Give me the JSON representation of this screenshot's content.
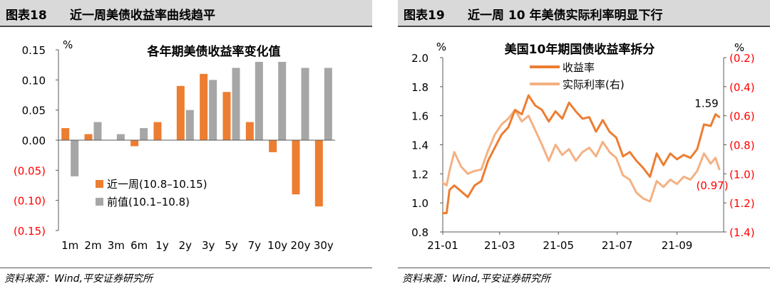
{
  "colors": {
    "orange": "#ed7d31",
    "gray": "#a6a6a6",
    "light_orange": "#f4b183",
    "red": "#ff0000",
    "axis": "#595959"
  },
  "panels": [
    {
      "figure_label": "图表18",
      "title": "近一周美债收益率曲线趋平",
      "source": "资料来源：Wind,平安证券研究所",
      "chart_data": {
        "type": "bar",
        "title": "各年期美债收益率变化值",
        "unit_label": "%",
        "categories": [
          "1m",
          "2m",
          "3m",
          "6m",
          "1y",
          "2y",
          "3y",
          "5y",
          "7y",
          "10y",
          "20y",
          "30y"
        ],
        "series": [
          {
            "name": "近一周(10.8–10.15)",
            "color": "#ed7d31",
            "values": [
              0.02,
              0.01,
              0.0,
              -0.01,
              0.03,
              0.09,
              0.11,
              0.08,
              0.03,
              -0.02,
              -0.09,
              -0.11
            ]
          },
          {
            "name": "前值(10.1–10.8)",
            "color": "#a6a6a6",
            "values": [
              -0.06,
              0.03,
              0.01,
              0.02,
              0.0,
              0.05,
              0.1,
              0.12,
              0.13,
              0.13,
              0.12,
              0.12
            ]
          }
        ],
        "ylim": [
          -0.15,
          0.15
        ],
        "yticks": [
          {
            "v": 0.15,
            "label": "0.15"
          },
          {
            "v": 0.1,
            "label": "0.10"
          },
          {
            "v": 0.05,
            "label": "0.05"
          },
          {
            "v": 0.0,
            "label": "0.00"
          },
          {
            "v": -0.05,
            "label": "(0.05)"
          },
          {
            "v": -0.1,
            "label": "(0.10)"
          },
          {
            "v": -0.15,
            "label": "(0.15)"
          }
        ],
        "legend_position": "bottom-left"
      }
    },
    {
      "figure_label": "图表19",
      "title": "近一周 10 年美债实际利率明显下行",
      "source": "资料来源：Wind,平安证券研究所",
      "chart_data": {
        "type": "line",
        "title": "美国10年期国债收益率拆分",
        "left_unit": "%",
        "right_unit": "%",
        "left_ylim": [
          0.8,
          2.0
        ],
        "right_ylim": [
          -1.4,
          -0.2
        ],
        "left_yticks": [
          "2.0",
          "1.8",
          "1.6",
          "1.4",
          "1.2",
          "1.0",
          "0.8"
        ],
        "right_yticks": [
          "(0.2)",
          "(0.4)",
          "(0.6)",
          "(0.8)",
          "(1.0)",
          "(1.2)",
          "(1.4)"
        ],
        "xticks": [
          "21-01",
          "21-03",
          "21-05",
          "21-07",
          "21-09"
        ],
        "series": [
          {
            "name": "收益率",
            "axis": "left",
            "color": "#ed7d31",
            "end_label": "1.59",
            "points": [
              [
                "2021-01-01",
                0.93
              ],
              [
                "2021-01-05",
                0.93
              ],
              [
                "2021-01-08",
                1.09
              ],
              [
                "2021-01-13",
                1.12
              ],
              [
                "2021-01-20",
                1.08
              ],
              [
                "2021-01-27",
                1.04
              ],
              [
                "2021-02-03",
                1.12
              ],
              [
                "2021-02-10",
                1.15
              ],
              [
                "2021-02-17",
                1.29
              ],
              [
                "2021-02-24",
                1.38
              ],
              [
                "2021-03-03",
                1.47
              ],
              [
                "2021-03-10",
                1.52
              ],
              [
                "2021-03-17",
                1.64
              ],
              [
                "2021-03-24",
                1.61
              ],
              [
                "2021-03-31",
                1.74
              ],
              [
                "2021-04-07",
                1.67
              ],
              [
                "2021-04-14",
                1.64
              ],
              [
                "2021-04-21",
                1.56
              ],
              [
                "2021-04-28",
                1.63
              ],
              [
                "2021-05-05",
                1.58
              ],
              [
                "2021-05-12",
                1.69
              ],
              [
                "2021-05-19",
                1.63
              ],
              [
                "2021-05-26",
                1.58
              ],
              [
                "2021-06-02",
                1.59
              ],
              [
                "2021-06-09",
                1.49
              ],
              [
                "2021-06-16",
                1.57
              ],
              [
                "2021-06-23",
                1.49
              ],
              [
                "2021-06-30",
                1.45
              ],
              [
                "2021-07-07",
                1.32
              ],
              [
                "2021-07-14",
                1.35
              ],
              [
                "2021-07-21",
                1.29
              ],
              [
                "2021-07-28",
                1.24
              ],
              [
                "2021-08-04",
                1.18
              ],
              [
                "2021-08-11",
                1.34
              ],
              [
                "2021-08-18",
                1.26
              ],
              [
                "2021-08-25",
                1.34
              ],
              [
                "2021-09-01",
                1.3
              ],
              [
                "2021-09-08",
                1.33
              ],
              [
                "2021-09-15",
                1.31
              ],
              [
                "2021-09-22",
                1.37
              ],
              [
                "2021-09-29",
                1.54
              ],
              [
                "2021-10-06",
                1.53
              ],
              [
                "2021-10-11",
                1.61
              ],
              [
                "2021-10-15",
                1.59
              ]
            ]
          },
          {
            "name": "实际利率(右)",
            "axis": "right",
            "color": "#f4b183",
            "end_label": "(0.97)",
            "points": [
              [
                "2021-01-01",
                -1.06
              ],
              [
                "2021-01-05",
                -1.08
              ],
              [
                "2021-01-08",
                -0.98
              ],
              [
                "2021-01-13",
                -0.85
              ],
              [
                "2021-01-20",
                -0.95
              ],
              [
                "2021-01-27",
                -1.0
              ],
              [
                "2021-02-03",
                -0.98
              ],
              [
                "2021-02-10",
                -0.97
              ],
              [
                "2021-02-17",
                -0.84
              ],
              [
                "2021-02-24",
                -0.73
              ],
              [
                "2021-03-03",
                -0.66
              ],
              [
                "2021-03-10",
                -0.62
              ],
              [
                "2021-03-17",
                -0.56
              ],
              [
                "2021-03-24",
                -0.64
              ],
              [
                "2021-03-31",
                -0.6
              ],
              [
                "2021-04-07",
                -0.7
              ],
              [
                "2021-04-14",
                -0.8
              ],
              [
                "2021-04-21",
                -0.91
              ],
              [
                "2021-04-28",
                -0.8
              ],
              [
                "2021-05-05",
                -0.87
              ],
              [
                "2021-05-12",
                -0.83
              ],
              [
                "2021-05-19",
                -0.91
              ],
              [
                "2021-05-26",
                -0.85
              ],
              [
                "2021-06-02",
                -0.82
              ],
              [
                "2021-06-09",
                -0.88
              ],
              [
                "2021-06-16",
                -0.78
              ],
              [
                "2021-06-23",
                -0.85
              ],
              [
                "2021-06-30",
                -0.89
              ],
              [
                "2021-07-07",
                -1.01
              ],
              [
                "2021-07-14",
                -1.04
              ],
              [
                "2021-07-21",
                -1.13
              ],
              [
                "2021-07-28",
                -1.17
              ],
              [
                "2021-08-04",
                -1.19
              ],
              [
                "2021-08-11",
                -1.05
              ],
              [
                "2021-08-18",
                -1.09
              ],
              [
                "2021-08-25",
                -1.04
              ],
              [
                "2021-09-01",
                -1.07
              ],
              [
                "2021-09-08",
                -1.02
              ],
              [
                "2021-09-15",
                -1.04
              ],
              [
                "2021-09-22",
                -0.98
              ],
              [
                "2021-09-29",
                -0.86
              ],
              [
                "2021-10-06",
                -0.93
              ],
              [
                "2021-10-11",
                -0.89
              ],
              [
                "2021-10-15",
                -0.97
              ]
            ]
          }
        ],
        "legend_position": "top-center"
      }
    }
  ]
}
